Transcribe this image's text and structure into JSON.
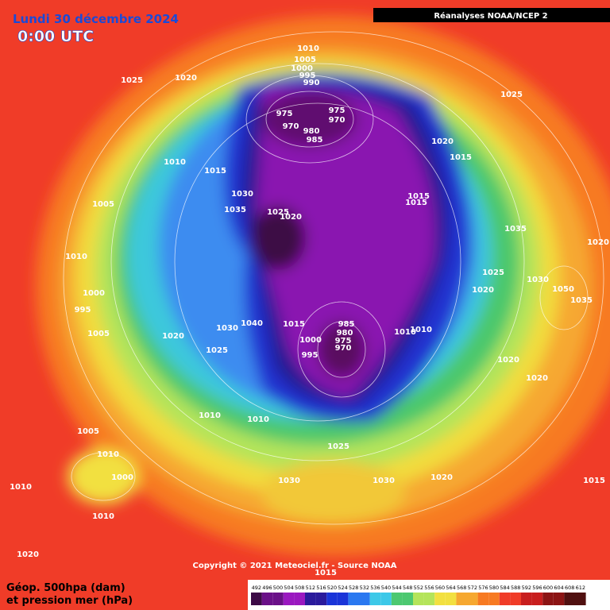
{
  "header": {
    "date": "Lundi 30 décembre 2024",
    "time": "0:00 UTC",
    "source": "Réanalyses NOAA/NCEP 2"
  },
  "copyright": "Copyright © 2021 Meteociel.fr - Source NOAA",
  "caption": {
    "line1": "Géop. 500hpa (dam)",
    "line2": "et pression mer (hPa)"
  },
  "isobar_labels": [
    "1010",
    "1005",
    "1000",
    "995",
    "990",
    "975",
    "970",
    "975",
    "970",
    "980",
    "985",
    "1025",
    "1020",
    "1015",
    "1010",
    "1005",
    "1010",
    "1030",
    "1035",
    "1025",
    "1020",
    "1015",
    "1015",
    "1020",
    "1015",
    "1025",
    "1035",
    "1025",
    "1020",
    "1030",
    "1050",
    "1035",
    "1020",
    "1020",
    "1020",
    "1015",
    "1010",
    "1040",
    "1030",
    "1025",
    "1020",
    "1000",
    "995",
    "1005",
    "985",
    "980",
    "975",
    "970",
    "1000",
    "995",
    "1010",
    "1010",
    "1010",
    "1025",
    "1030",
    "1030",
    "1020",
    "1015",
    "1005",
    "1000",
    "1010",
    "1010",
    "1010",
    "1020",
    "1015"
  ],
  "legend": [
    "492",
    "496",
    "500",
    "504",
    "508",
    "512",
    "516",
    "520",
    "524",
    "528",
    "532",
    "536",
    "540",
    "544",
    "548",
    "552",
    "556",
    "560",
    "564",
    "568",
    "572",
    "576",
    "580",
    "584",
    "588",
    "592",
    "596",
    "600",
    "604",
    "608",
    "612"
  ]
}
